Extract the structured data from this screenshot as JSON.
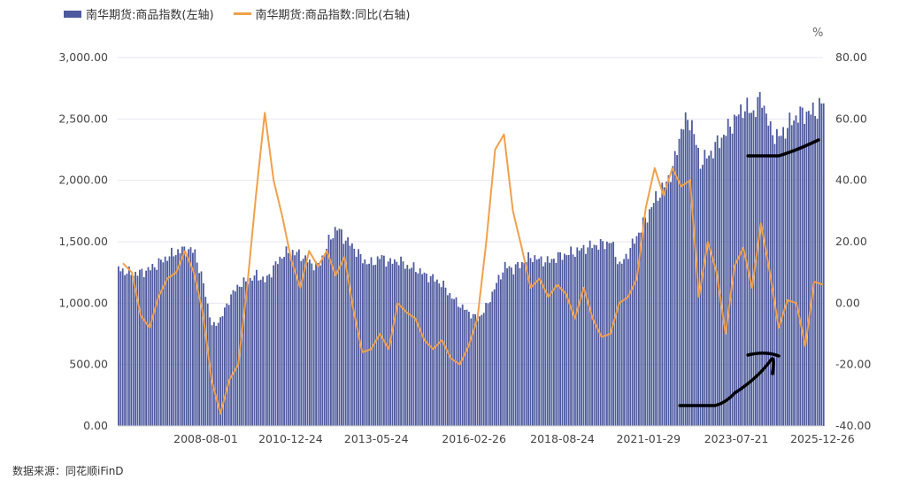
{
  "legend": {
    "bar_label": "南华期货:商品指数(左轴)",
    "line_label": "南华期货:商品指数:同比(右轴)"
  },
  "right_unit": "%",
  "source": "数据来源：同花顺iFinD",
  "colors": {
    "bar": "#4e5a9e",
    "line": "#f0a04b",
    "grid": "#e6e6f0",
    "annotation": "#000000"
  },
  "chart_data": {
    "type": "bar+line",
    "x_start": 2006.0,
    "x_step_years": 0.25,
    "x_range": [
      2006.1,
      2026.0
    ],
    "xticks": [
      "2008-08-01",
      "2010-12-24",
      "2013-05-24",
      "2016-02-26",
      "2018-08-24",
      "2021-01-29",
      "2023-07-21",
      "2025-12-26"
    ],
    "left_axis": {
      "ylim": [
        0,
        3000
      ],
      "ticks": [
        "0.00",
        "500.00",
        "1,000.00",
        "1,500.00",
        "2,000.00",
        "2,500.00",
        "3,000.00"
      ]
    },
    "right_axis": {
      "ylim": [
        -40,
        80
      ],
      "ticks": [
        "-40.00",
        "-20.00",
        "0.00",
        "20.00",
        "40.00",
        "60.00",
        "80.00"
      ]
    },
    "grid": true,
    "legend_position": "top-left",
    "series": [
      {
        "name": "南华期货:商品指数(左轴)",
        "type": "bar",
        "axis": "left",
        "values": [
          1300,
          1260,
          1240,
          1250,
          1280,
          1330,
          1380,
          1420,
          1440,
          1420,
          1150,
          800,
          880,
          1050,
          1150,
          1180,
          1230,
          1180,
          1300,
          1400,
          1420,
          1390,
          1330,
          1300,
          1480,
          1620,
          1520,
          1450,
          1350,
          1320,
          1380,
          1330,
          1350,
          1300,
          1280,
          1230,
          1200,
          1150,
          1050,
          980,
          920,
          870,
          980,
          1150,
          1300,
          1280,
          1330,
          1380,
          1350,
          1340,
          1380,
          1400,
          1420,
          1450,
          1470,
          1480,
          1500,
          1300,
          1420,
          1560,
          1700,
          1850,
          1950,
          2100,
          2450,
          2500,
          2150,
          2200,
          2300,
          2400,
          2500,
          2600,
          2550,
          2680,
          2400,
          2350,
          2450,
          2530,
          2550,
          2560,
          2640
        ]
      },
      {
        "name": "南华期货:商品指数:同比(右轴)",
        "type": "line",
        "axis": "right",
        "values": [
          18,
          13,
          10,
          -4,
          -8,
          2,
          8,
          10,
          17,
          10,
          -3,
          -25,
          -36,
          -25,
          -20,
          5,
          35,
          62,
          40,
          28,
          14,
          5,
          17,
          12,
          17,
          9,
          15,
          -2,
          -16,
          -15,
          -10,
          -15,
          0,
          -3,
          -5,
          -12,
          -15,
          -12,
          -18,
          -20,
          -14,
          -5,
          20,
          50,
          55,
          30,
          18,
          5,
          8,
          2,
          6,
          3,
          -5,
          5,
          -5,
          -11,
          -10,
          0,
          2,
          8,
          31,
          44,
          35,
          44,
          38,
          40,
          2,
          20,
          10,
          -10,
          12,
          18,
          5,
          26,
          10,
          -8,
          1,
          0,
          -14,
          7,
          6
        ]
      }
    ]
  }
}
